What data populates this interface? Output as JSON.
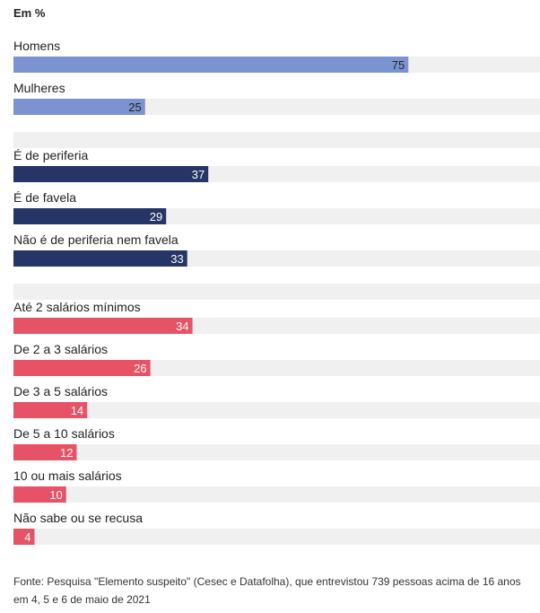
{
  "chart_data": {
    "type": "bar",
    "orientation": "horizontal",
    "unit_label": "Em %",
    "xlim": [
      0,
      100
    ],
    "grid": false,
    "groups": [
      {
        "color": "#7b93d0",
        "items": [
          {
            "label": "Homens",
            "value": 75
          },
          {
            "label": "Mulheres",
            "value": 25
          }
        ]
      },
      {
        "color": "#253565",
        "items": [
          {
            "label": "É de periferia",
            "value": 37
          },
          {
            "label": "É de favela",
            "value": 29
          },
          {
            "label": "Não é de periferia nem favela",
            "value": 33
          }
        ]
      },
      {
        "color": "#e65266",
        "items": [
          {
            "label": "Até 2 salários mínimos",
            "value": 34
          },
          {
            "label": "De 2 a 3 salários",
            "value": 26
          },
          {
            "label": "De 3 a 5 salários",
            "value": 14
          },
          {
            "label": "De 5 a 10 salários",
            "value": 12
          },
          {
            "label": "10 ou mais salários",
            "value": 10
          },
          {
            "label": "Não sabe ou se recusa",
            "value": 4
          }
        ]
      }
    ],
    "track_color": "#f0f0f0"
  },
  "source": "Fonte: Pesquisa \"Elemento suspeito\" (Cesec e Datafolha), que entrevistou 739 pessoas acima de 16 anos em 4, 5 e 6 de maio de 2021"
}
